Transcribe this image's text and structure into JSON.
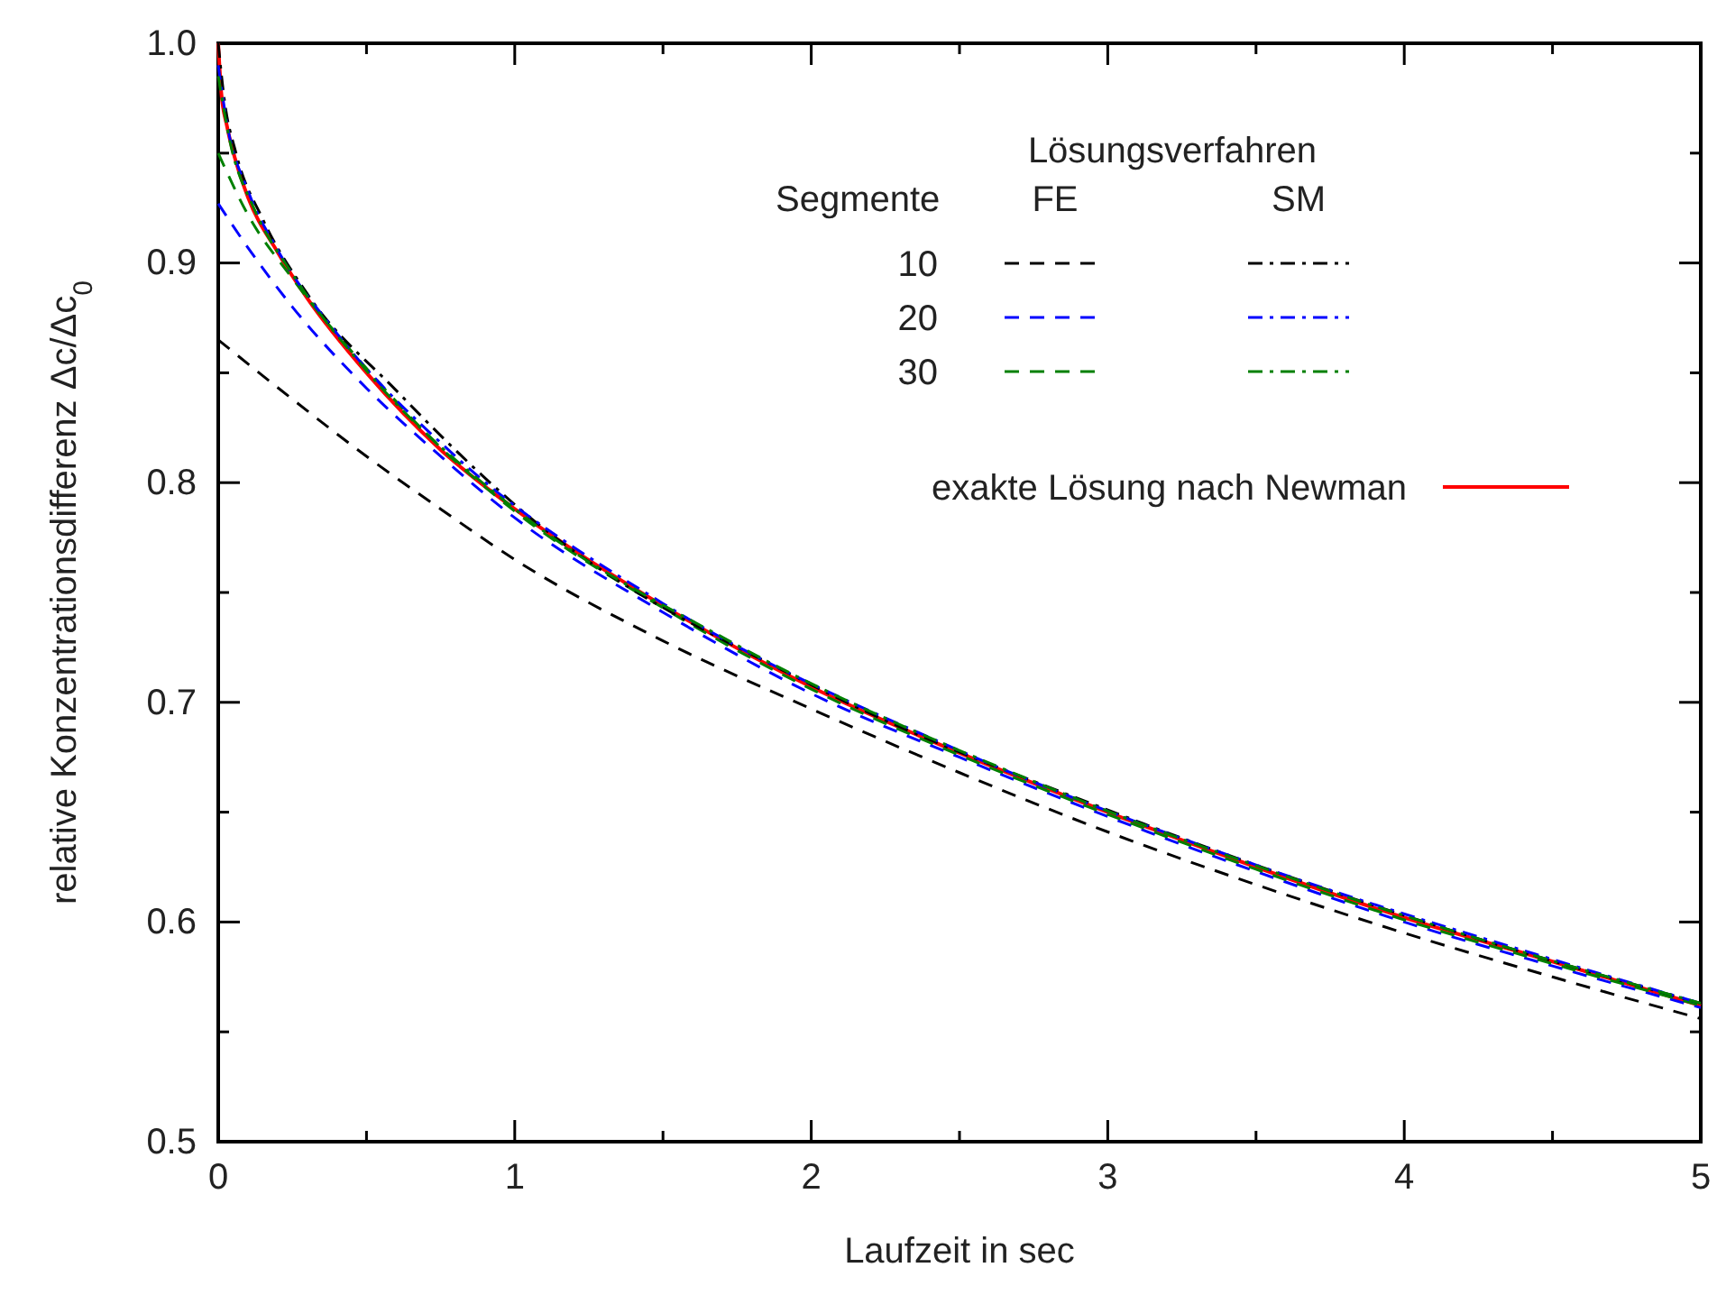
{
  "chart_data": {
    "type": "line",
    "xlabel": "Laufzeit in sec",
    "ylabel": "relative Konzentrationsdifferenz Δc/Δc$_{0}$",
    "xlim": [
      0,
      5
    ],
    "ylim": [
      0.5,
      1.0
    ],
    "xticks": [
      0,
      {
        "value": 0.5,
        "label": null
      },
      1,
      {
        "value": 1.5,
        "label": null
      },
      2,
      {
        "value": 2.5,
        "label": null
      },
      3,
      {
        "value": 3.5,
        "label": null
      },
      4,
      {
        "value": 4.5,
        "label": null
      },
      5
    ],
    "yticks": [
      0.5,
      {
        "value": 0.55,
        "label": null
      },
      0.6,
      {
        "value": 0.65,
        "label": null
      },
      0.7,
      {
        "value": 0.75,
        "label": null
      },
      0.8,
      {
        "value": 0.85,
        "label": null
      },
      0.9,
      {
        "value": 0.95,
        "label": null
      },
      {
        "value": 1.0,
        "label": "1.0"
      }
    ],
    "grid": false,
    "legend": "top right",
    "marker": "none",
    "annotations": [
      "Lösungsverfahren",
      "Segmente",
      "FE",
      "SM",
      "10",
      "20",
      "30"
    ],
    "series": [
      {
        "name": "exakte Lösung nach Newman",
        "color": "#ff0000",
        "line_style": "solid",
        "x": [
          0,
          0.01,
          0.03,
          0.06,
          0.1,
          0.2,
          0.3,
          0.5,
          0.75,
          1,
          1.5,
          2,
          2.5,
          3,
          3.5,
          4,
          4.5,
          5
        ],
        "values": [
          1.0,
          0.978,
          0.962,
          0.946,
          0.93,
          0.905,
          0.884,
          0.85,
          0.815,
          0.788,
          0.744,
          0.707,
          0.677,
          0.65,
          0.625,
          0.602,
          0.582,
          0.562
        ]
      },
      {
        "color": "#000000",
        "line_style": "dashed",
        "x": [
          0,
          0.25,
          0.5,
          0.75,
          1,
          1.5,
          2,
          2.5,
          3,
          3.5,
          4,
          4.5,
          5
        ],
        "values": [
          0.865,
          0.838,
          0.812,
          0.788,
          0.765,
          0.728,
          0.697,
          0.668,
          0.641,
          0.617,
          0.595,
          0.575,
          0.556
        ]
      },
      {
        "color": "#0000ff",
        "line_style": "dashed",
        "x": [
          0,
          0.1,
          0.25,
          0.5,
          0.75,
          1,
          1.5,
          2,
          2.5,
          3,
          3.5,
          4,
          4.5,
          5
        ],
        "values": [
          0.927,
          0.907,
          0.88,
          0.843,
          0.812,
          0.784,
          0.741,
          0.704,
          0.675,
          0.648,
          0.623,
          0.6,
          0.58,
          0.561
        ]
      },
      {
        "color": "#008000",
        "line_style": "dashed",
        "x": [
          0,
          0.1,
          0.25,
          0.5,
          0.75,
          1,
          1.5,
          2,
          2.5,
          3,
          3.5,
          4,
          4.5,
          5
        ],
        "values": [
          0.95,
          0.922,
          0.893,
          0.852,
          0.816,
          0.787,
          0.743,
          0.706,
          0.676,
          0.649,
          0.624,
          0.601,
          0.581,
          0.562
        ]
      },
      {
        "color": "#000000",
        "line_style": "dashdot",
        "x": [
          0,
          0.02,
          0.06,
          0.15,
          0.3,
          0.6,
          1,
          2,
          3,
          4,
          5
        ],
        "values": [
          1.0,
          0.975,
          0.95,
          0.92,
          0.886,
          0.842,
          0.79,
          0.708,
          0.651,
          0.603,
          0.563
        ]
      },
      {
        "color": "#0000ff",
        "line_style": "dashdot",
        "x": [
          0,
          0.03,
          0.1,
          0.2,
          0.4,
          0.8,
          1.5,
          2.5,
          3.5,
          4.5,
          5
        ],
        "values": [
          0.99,
          0.963,
          0.933,
          0.906,
          0.868,
          0.812,
          0.745,
          0.678,
          0.626,
          0.583,
          0.563
        ]
      },
      {
        "color": "#008000",
        "line_style": "dashdot",
        "x": [
          0,
          0.04,
          0.12,
          0.25,
          0.5,
          1,
          1.75,
          2.75,
          3.75,
          5
        ],
        "values": [
          0.985,
          0.955,
          0.925,
          0.895,
          0.851,
          0.788,
          0.726,
          0.664,
          0.614,
          0.563
        ]
      }
    ]
  }
}
